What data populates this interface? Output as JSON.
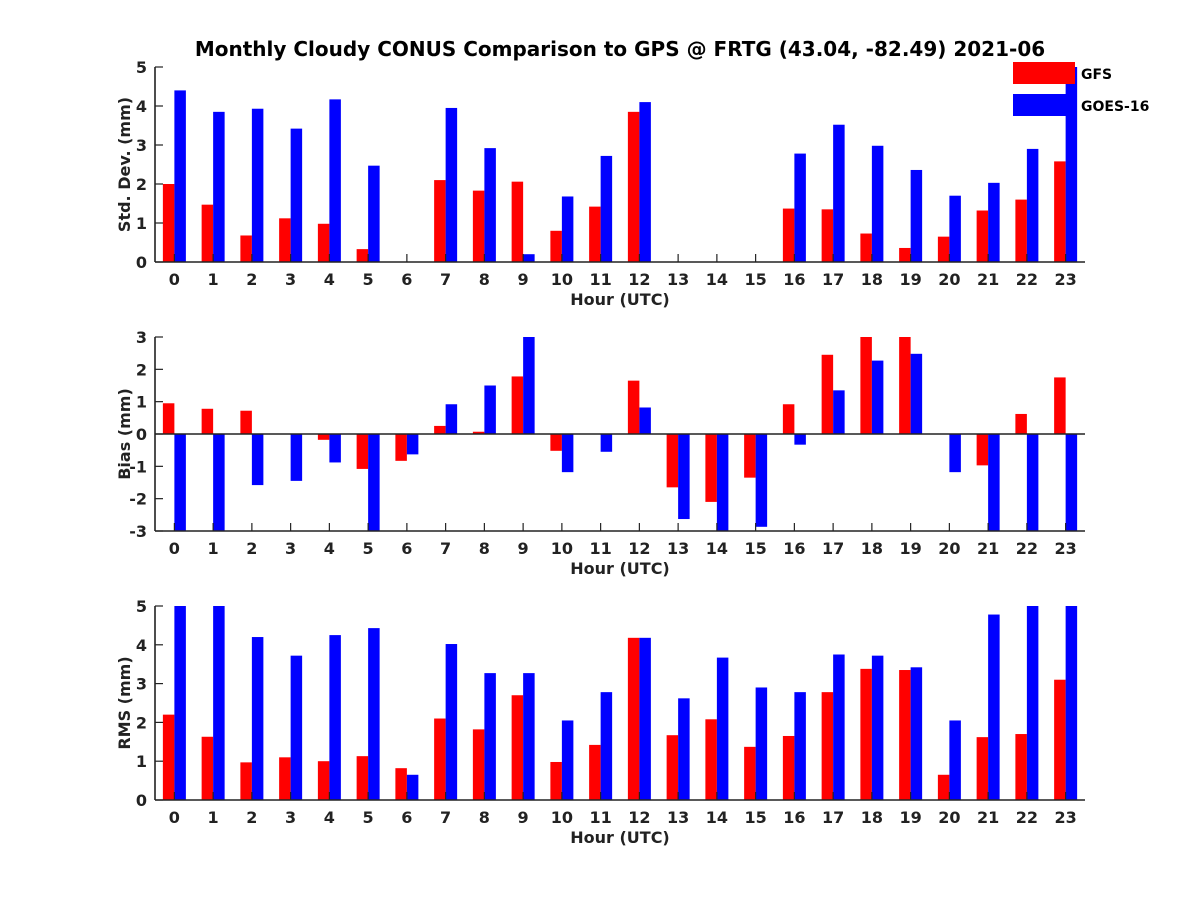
{
  "title": "Monthly Cloudy CONUS Comparison to GPS @ FRTG (43.04, -82.49) 2021-06",
  "legend": [
    {
      "label": "GFS",
      "color": "#ff0000"
    },
    {
      "label": "GOES-16",
      "color": "#0000ff"
    }
  ],
  "chart_data": [
    {
      "type": "bar",
      "xlabel": "Hour (UTC)",
      "ylabel": "Std. Dev. (mm)",
      "ylim": [
        0,
        5
      ],
      "yticks": [
        0,
        1,
        2,
        3,
        4,
        5
      ],
      "categories": [
        "0",
        "1",
        "2",
        "3",
        "4",
        "5",
        "6",
        "7",
        "8",
        "9",
        "10",
        "11",
        "12",
        "13",
        "14",
        "15",
        "16",
        "17",
        "18",
        "19",
        "20",
        "21",
        "22",
        "23"
      ],
      "series": [
        {
          "name": "GFS",
          "color": "#ff0000",
          "values": [
            2.0,
            1.47,
            0.68,
            1.12,
            0.98,
            0.33,
            0,
            2.1,
            1.83,
            2.06,
            0.8,
            1.42,
            3.85,
            0,
            0,
            0,
            1.37,
            1.35,
            0.73,
            0.36,
            0.65,
            1.32,
            1.6,
            2.58
          ]
        },
        {
          "name": "GOES-16",
          "color": "#0000ff",
          "values": [
            4.4,
            3.85,
            3.93,
            3.42,
            4.17,
            2.47,
            0,
            3.95,
            2.92,
            0.2,
            1.68,
            2.72,
            4.1,
            0,
            0,
            0,
            2.78,
            3.52,
            2.98,
            2.36,
            1.7,
            2.03,
            2.9,
            5.0
          ]
        }
      ]
    },
    {
      "type": "bar",
      "xlabel": "Hour (UTC)",
      "ylabel": "Bias (mm)",
      "ylim": [
        -3,
        3
      ],
      "yticks": [
        -3,
        -2,
        -1,
        0,
        1,
        2,
        3
      ],
      "categories": [
        "0",
        "1",
        "2",
        "3",
        "4",
        "5",
        "6",
        "7",
        "8",
        "9",
        "10",
        "11",
        "12",
        "13",
        "14",
        "15",
        "16",
        "17",
        "18",
        "19",
        "20",
        "21",
        "22",
        "23"
      ],
      "series": [
        {
          "name": "GFS",
          "color": "#ff0000",
          "values": [
            0.95,
            0.78,
            0.72,
            0,
            -0.18,
            -1.08,
            -0.83,
            0.25,
            0.07,
            1.78,
            -0.52,
            0,
            1.65,
            -1.65,
            -2.1,
            -1.35,
            0.92,
            2.45,
            3.0,
            3.0,
            0,
            -0.97,
            0.62,
            1.75
          ]
        },
        {
          "name": "GOES-16",
          "color": "#0000ff",
          "values": [
            -3.0,
            -3.0,
            -1.58,
            -1.45,
            -0.88,
            -3.0,
            -0.63,
            0.92,
            1.5,
            3.0,
            -1.18,
            -0.55,
            0.82,
            -2.63,
            -3.0,
            -2.87,
            -0.33,
            1.35,
            2.27,
            2.48,
            -1.18,
            -3.0,
            -3.0,
            -3.0
          ]
        }
      ]
    },
    {
      "type": "bar",
      "xlabel": "Hour (UTC)",
      "ylabel": "RMS (mm)",
      "ylim": [
        0,
        5
      ],
      "yticks": [
        0,
        1,
        2,
        3,
        4,
        5
      ],
      "categories": [
        "0",
        "1",
        "2",
        "3",
        "4",
        "5",
        "6",
        "7",
        "8",
        "9",
        "10",
        "11",
        "12",
        "13",
        "14",
        "15",
        "16",
        "17",
        "18",
        "19",
        "20",
        "21",
        "22",
        "23"
      ],
      "series": [
        {
          "name": "GFS",
          "color": "#ff0000",
          "values": [
            2.2,
            1.63,
            0.97,
            1.1,
            1.0,
            1.13,
            0.82,
            2.1,
            1.82,
            2.7,
            0.98,
            1.42,
            4.18,
            1.67,
            2.08,
            1.37,
            1.65,
            2.78,
            3.38,
            3.35,
            0.65,
            1.62,
            1.7,
            3.1
          ]
        },
        {
          "name": "GOES-16",
          "color": "#0000ff",
          "values": [
            5.0,
            5.0,
            4.2,
            3.72,
            4.25,
            4.43,
            0.65,
            4.02,
            3.27,
            3.27,
            2.05,
            2.78,
            4.18,
            2.62,
            3.67,
            2.9,
            2.78,
            3.75,
            3.72,
            3.42,
            2.05,
            4.78,
            5.0,
            5.0
          ]
        }
      ]
    }
  ]
}
